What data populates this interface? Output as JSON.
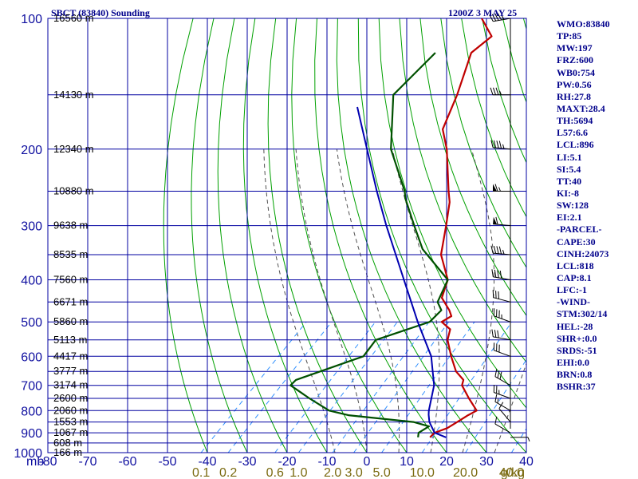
{
  "header": {
    "station": "SBCT (83840) Sounding",
    "time": "1200Z  3 MAY 25"
  },
  "colors": {
    "grid": "#0000a0",
    "dry_adiabat": "#00a000",
    "moist_adiabat": "#505050",
    "mixing_ratio": "#3090ff",
    "temperature": "#c00000",
    "dewpoint": "#005000",
    "parcel": "#0000b0",
    "wind_barb": "#000000",
    "labels": "#00008b"
  },
  "axes": {
    "pressure_levels": [
      "100",
      "200",
      "300",
      "400",
      "500",
      "600",
      "700",
      "800",
      "900",
      "1000"
    ],
    "pressure_unit": "mb",
    "temperature_ticks": [
      "-80",
      "-70",
      "-60",
      "-50",
      "-40",
      "-30",
      "-20",
      "-10",
      "0",
      "10",
      "20",
      "30",
      "40"
    ],
    "mixing_ratio_ticks": [
      "0.1",
      "0.2",
      "0.6",
      "1.0",
      "2.0",
      "3.0",
      "5.0",
      "10.0",
      "20.0",
      "40.0"
    ],
    "mixing_ratio_unit": "g/kg"
  },
  "heights": [
    {
      "p": 100,
      "label": "16560 m"
    },
    {
      "p": 150,
      "label": "14130 m"
    },
    {
      "p": 200,
      "label": "12340 m"
    },
    {
      "p": 250,
      "label": "10880 m"
    },
    {
      "p": 300,
      "label": "9638 m"
    },
    {
      "p": 350,
      "label": "8535 m"
    },
    {
      "p": 400,
      "label": "7560 m"
    },
    {
      "p": 450,
      "label": "6671 m"
    },
    {
      "p": 500,
      "label": "5860 m"
    },
    {
      "p": 550,
      "label": "5113 m"
    },
    {
      "p": 600,
      "label": "4417 m"
    },
    {
      "p": 650,
      "label": "3777 m"
    },
    {
      "p": 700,
      "label": "3174 m"
    },
    {
      "p": 750,
      "label": "2600 m"
    },
    {
      "p": 800,
      "label": "2060 m"
    },
    {
      "p": 850,
      "label": "1553 m"
    },
    {
      "p": 900,
      "label": "1067 m"
    },
    {
      "p": 950,
      "label": "608 m"
    },
    {
      "p": 1000,
      "label": "166 m"
    }
  ],
  "stats": [
    "WMO:83840",
    "TP:85",
    "MW:197",
    "FRZ:600",
    "WB0:754",
    "PW:0.56",
    "RH:27.8",
    "MAXT:28.4",
    "TH:5694",
    "L57:6.6",
    "LCL:896",
    "LI:5.1",
    "SI:5.4",
    "TT:40",
    "KI:-8",
    "SW:128",
    "EI:2.1",
    "-PARCEL-",
    "CAPE:30",
    "CINH:24073",
    "LCL:818",
    "CAP:8.1",
    "LFC:-1",
    "-WIND-",
    "STM:302/14",
    "HEL:-28",
    "SHR+:0.0",
    "SRDS:-51",
    "EHI:0.0",
    "BRN:0.8",
    "BSHR:37"
  ],
  "chart_data": {
    "type": "line",
    "title": "SBCT (83840) Sounding",
    "subtitle": "1200Z  3 MAY 25",
    "xlabel": "",
    "ylabel": "",
    "ylim_pressure_mb": [
      1000,
      100
    ],
    "temperature_range_at_1000mb_C": [
      -80,
      40
    ],
    "skew": "isotherms tilted 45 degrees",
    "grid": true,
    "series": [
      {
        "key": "temperature",
        "points": [
          [
            922,
            12
          ],
          [
            900,
            12
          ],
          [
            878,
            14
          ],
          [
            850,
            15
          ],
          [
            820,
            16
          ],
          [
            800,
            17
          ],
          [
            750,
            12
          ],
          [
            700,
            7
          ],
          [
            680,
            6
          ],
          [
            650,
            2
          ],
          [
            600,
            -3
          ],
          [
            550,
            -8
          ],
          [
            520,
            -10
          ],
          [
            500,
            -14
          ],
          [
            485,
            -13
          ],
          [
            470,
            -15
          ],
          [
            440,
            -20
          ],
          [
            400,
            -23
          ],
          [
            350,
            -31
          ],
          [
            300,
            -37
          ],
          [
            265,
            -42
          ],
          [
            250,
            -45
          ],
          [
            200,
            -56
          ],
          [
            180,
            -62
          ],
          [
            150,
            -67
          ],
          [
            120,
            -74
          ],
          [
            110,
            -73
          ],
          [
            100,
            -80
          ]
        ]
      },
      {
        "key": "dewpoint",
        "points": [
          [
            922,
            9
          ],
          [
            900,
            8
          ],
          [
            870,
            9
          ],
          [
            850,
            4
          ],
          [
            820,
            -14
          ],
          [
            800,
            -20
          ],
          [
            750,
            -28
          ],
          [
            700,
            -36
          ],
          [
            680,
            -36
          ],
          [
            600,
            -25
          ],
          [
            550,
            -26
          ],
          [
            500,
            -17
          ],
          [
            470,
            -17
          ],
          [
            450,
            -20
          ],
          [
            400,
            -23
          ],
          [
            340,
            -37
          ],
          [
            300,
            -45
          ],
          [
            260,
            -54
          ],
          [
            250,
            -56
          ],
          [
            200,
            -70
          ],
          [
            150,
            -83
          ],
          [
            120,
            -83
          ]
        ]
      },
      {
        "key": "parcel",
        "points": [
          [
            922,
            16
          ],
          [
            900,
            12
          ],
          [
            850,
            8
          ],
          [
            818,
            6
          ],
          [
            800,
            5
          ],
          [
            700,
            0
          ],
          [
            600,
            -8
          ],
          [
            500,
            -20
          ],
          [
            400,
            -34
          ],
          [
            300,
            -52
          ],
          [
            250,
            -63
          ],
          [
            200,
            -76
          ],
          [
            160,
            -89
          ]
        ]
      }
    ],
    "wind_barbs": [
      {
        "p": 922,
        "dir": 90,
        "spd": 5
      },
      {
        "p": 900,
        "dir": 300,
        "spd": 10
      },
      {
        "p": 850,
        "dir": 320,
        "spd": 10
      },
      {
        "p": 800,
        "dir": 300,
        "spd": 15
      },
      {
        "p": 750,
        "dir": 290,
        "spd": 25
      },
      {
        "p": 700,
        "dir": 300,
        "spd": 30
      },
      {
        "p": 600,
        "dir": 290,
        "spd": 30
      },
      {
        "p": 550,
        "dir": 280,
        "spd": 30
      },
      {
        "p": 500,
        "dir": 290,
        "spd": 35
      },
      {
        "p": 450,
        "dir": 285,
        "spd": 30
      },
      {
        "p": 400,
        "dir": 280,
        "spd": 40
      },
      {
        "p": 350,
        "dir": 275,
        "spd": 45
      },
      {
        "p": 300,
        "dir": 275,
        "spd": 60
      },
      {
        "p": 250,
        "dir": 270,
        "spd": 65
      },
      {
        "p": 200,
        "dir": 275,
        "spd": 45
      },
      {
        "p": 150,
        "dir": 270,
        "spd": 35
      },
      {
        "p": 100,
        "dir": 260,
        "spd": 45
      }
    ]
  }
}
